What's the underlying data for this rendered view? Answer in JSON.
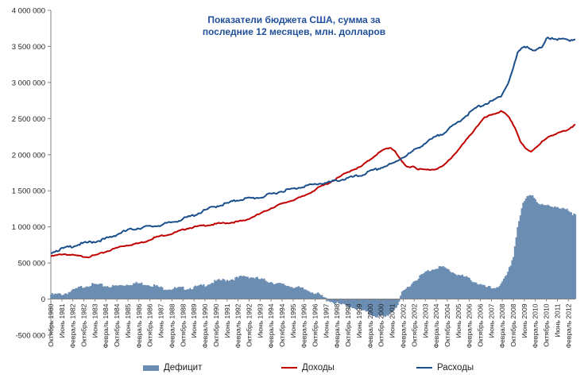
{
  "chart_data": {
    "type": "bar+line",
    "title_line1": "Показатели бюджета США, сумма за",
    "title_line2": "последние 12 месяцев, млн. долларов",
    "ylim": [
      -500000,
      4000000
    ],
    "y_ticks": [
      {
        "v": 4000000,
        "label": "4 000 000"
      },
      {
        "v": 3500000,
        "label": "3 500 000"
      },
      {
        "v": 3000000,
        "label": "3 000 000"
      },
      {
        "v": 2500000,
        "label": "2 500 000"
      },
      {
        "v": 2000000,
        "label": "2 000 000"
      },
      {
        "v": 1500000,
        "label": "1 500 000"
      },
      {
        "v": 1000000,
        "label": "1 000 000"
      },
      {
        "v": 500000,
        "label": "500 000"
      },
      {
        "v": 0,
        "label": "0"
      },
      {
        "v": -500000,
        "label": "-500 000"
      }
    ],
    "x_start": 1980.75,
    "x_end": 2012.5,
    "x_tick_labels": [
      {
        "t": 1980.75,
        "label": "Октябрь 1980"
      },
      {
        "t": 1981.42,
        "label": "Июнь 1981"
      },
      {
        "t": 1982.08,
        "label": "Февраль 1982"
      },
      {
        "t": 1982.75,
        "label": "Октябрь 1982"
      },
      {
        "t": 1983.42,
        "label": "Июнь 1983"
      },
      {
        "t": 1984.08,
        "label": "Февраль 1984"
      },
      {
        "t": 1984.75,
        "label": "Октябрь 1984"
      },
      {
        "t": 1985.42,
        "label": "Июнь 1985"
      },
      {
        "t": 1986.08,
        "label": "Февраль 1986"
      },
      {
        "t": 1986.75,
        "label": "Октябрь 1986"
      },
      {
        "t": 1987.42,
        "label": "Июнь 1987"
      },
      {
        "t": 1988.08,
        "label": "Февраль 1988"
      },
      {
        "t": 1988.75,
        "label": "Октябрь 1988"
      },
      {
        "t": 1989.42,
        "label": "Июнь 1989"
      },
      {
        "t": 1990.08,
        "label": "Февраль 1990"
      },
      {
        "t": 1990.75,
        "label": "Октябрь 1990"
      },
      {
        "t": 1991.42,
        "label": "Июнь 1991"
      },
      {
        "t": 1992.08,
        "label": "Февраль 1992"
      },
      {
        "t": 1992.75,
        "label": "Октябрь 1992"
      },
      {
        "t": 1993.42,
        "label": "Июнь 1993"
      },
      {
        "t": 1994.08,
        "label": "Февраль 1994"
      },
      {
        "t": 1994.75,
        "label": "Октябрь 1994"
      },
      {
        "t": 1995.42,
        "label": "Июнь 1995"
      },
      {
        "t": 1996.08,
        "label": "Февраль 1996"
      },
      {
        "t": 1996.75,
        "label": "Октябрь 1996"
      },
      {
        "t": 1997.42,
        "label": "Июнь 1997"
      },
      {
        "t": 1998.08,
        "label": "Февраль 1998"
      },
      {
        "t": 1998.75,
        "label": "Октябрь 1998"
      },
      {
        "t": 1999.42,
        "label": "Июнь 1999"
      },
      {
        "t": 2000.08,
        "label": "Февраль 2000"
      },
      {
        "t": 2000.75,
        "label": "Октябрь 2000"
      },
      {
        "t": 2001.42,
        "label": "Июнь 2001"
      },
      {
        "t": 2002.08,
        "label": "Февраль 2002"
      },
      {
        "t": 2002.75,
        "label": "Октябрь 2002"
      },
      {
        "t": 2003.42,
        "label": "Июнь 2003"
      },
      {
        "t": 2004.08,
        "label": "Февраль 2004"
      },
      {
        "t": 2004.75,
        "label": "Октябрь 2004"
      },
      {
        "t": 2005.42,
        "label": "Июнь 2005"
      },
      {
        "t": 2006.08,
        "label": "Февраль 2006"
      },
      {
        "t": 2006.75,
        "label": "Октябрь 2006"
      },
      {
        "t": 2007.42,
        "label": "Июнь 2007"
      },
      {
        "t": 2008.08,
        "label": "Февраль 2008"
      },
      {
        "t": 2008.75,
        "label": "Октябрь 2008"
      },
      {
        "t": 2009.42,
        "label": "Июнь 2009"
      },
      {
        "t": 2010.08,
        "label": "Февраль 2010"
      },
      {
        "t": 2010.75,
        "label": "Октябрь 2010"
      },
      {
        "t": 2011.42,
        "label": "Июнь 2011"
      },
      {
        "t": 2012.08,
        "label": "Февраль 2012"
      }
    ],
    "series": [
      {
        "name": "Дефицит",
        "kind": "bar",
        "color": "#6b8db2",
        "points": [
          [
            1980.75,
            60000
          ],
          [
            1981.5,
            70000
          ],
          [
            1982.0,
            110000
          ],
          [
            1982.5,
            160000
          ],
          [
            1983.0,
            195000
          ],
          [
            1983.5,
            200000
          ],
          [
            1984.0,
            185000
          ],
          [
            1984.5,
            175000
          ],
          [
            1985.0,
            190000
          ],
          [
            1985.5,
            210000
          ],
          [
            1986.0,
            220000
          ],
          [
            1986.5,
            210000
          ],
          [
            1987.0,
            190000
          ],
          [
            1987.5,
            150000
          ],
          [
            1988.0,
            145000
          ],
          [
            1988.5,
            150000
          ],
          [
            1989.0,
            150000
          ],
          [
            1989.5,
            165000
          ],
          [
            1990.0,
            190000
          ],
          [
            1990.5,
            230000
          ],
          [
            1991.0,
            260000
          ],
          [
            1991.5,
            270000
          ],
          [
            1992.0,
            290000
          ],
          [
            1992.5,
            320000
          ],
          [
            1993.0,
            300000
          ],
          [
            1993.5,
            270000
          ],
          [
            1994.0,
            245000
          ],
          [
            1994.5,
            210000
          ],
          [
            1995.0,
            190000
          ],
          [
            1995.5,
            170000
          ],
          [
            1996.0,
            140000
          ],
          [
            1996.5,
            110000
          ],
          [
            1997.0,
            60000
          ],
          [
            1997.5,
            -10000
          ],
          [
            1998.0,
            -60000
          ],
          [
            1998.5,
            -90000
          ],
          [
            1999.0,
            -110000
          ],
          [
            1999.5,
            -150000
          ],
          [
            2000.0,
            -200000
          ],
          [
            2000.5,
            -240000
          ],
          [
            2001.0,
            -250000
          ],
          [
            2001.5,
            -150000
          ],
          [
            2001.8,
            -60000
          ],
          [
            2002.0,
            80000
          ],
          [
            2002.5,
            200000
          ],
          [
            2003.0,
            300000
          ],
          [
            2003.5,
            380000
          ],
          [
            2004.0,
            430000
          ],
          [
            2004.3,
            450000
          ],
          [
            2004.7,
            420000
          ],
          [
            2005.0,
            380000
          ],
          [
            2005.5,
            330000
          ],
          [
            2006.0,
            290000
          ],
          [
            2006.5,
            230000
          ],
          [
            2007.0,
            170000
          ],
          [
            2007.5,
            150000
          ],
          [
            2008.0,
            200000
          ],
          [
            2008.4,
            350000
          ],
          [
            2008.75,
            600000
          ],
          [
            2009.0,
            1000000
          ],
          [
            2009.3,
            1300000
          ],
          [
            2009.6,
            1420000
          ],
          [
            2009.9,
            1450000
          ],
          [
            2010.2,
            1350000
          ],
          [
            2010.5,
            1300000
          ],
          [
            2011.0,
            1280000
          ],
          [
            2011.3,
            1300000
          ],
          [
            2011.6,
            1250000
          ],
          [
            2012.0,
            1230000
          ],
          [
            2012.3,
            1170000
          ],
          [
            2012.5,
            1200000
          ]
        ]
      },
      {
        "name": "Доходы",
        "kind": "line",
        "color": "#c00000",
        "points": [
          [
            1980.75,
            590000
          ],
          [
            1981.5,
            625000
          ],
          [
            1982.0,
            610000
          ],
          [
            1982.5,
            595000
          ],
          [
            1983.0,
            585000
          ],
          [
            1983.5,
            610000
          ],
          [
            1984.0,
            650000
          ],
          [
            1984.5,
            690000
          ],
          [
            1985.0,
            730000
          ],
          [
            1985.5,
            750000
          ],
          [
            1986.0,
            770000
          ],
          [
            1986.5,
            800000
          ],
          [
            1987.0,
            850000
          ],
          [
            1987.5,
            880000
          ],
          [
            1988.0,
            900000
          ],
          [
            1988.5,
            940000
          ],
          [
            1989.0,
            980000
          ],
          [
            1989.5,
            1000000
          ],
          [
            1990.0,
            1020000
          ],
          [
            1990.5,
            1030000
          ],
          [
            1991.0,
            1050000
          ],
          [
            1991.5,
            1055000
          ],
          [
            1992.0,
            1070000
          ],
          [
            1992.5,
            1090000
          ],
          [
            1993.0,
            1140000
          ],
          [
            1993.5,
            1190000
          ],
          [
            1994.0,
            1250000
          ],
          [
            1994.5,
            1300000
          ],
          [
            1995.0,
            1340000
          ],
          [
            1995.5,
            1380000
          ],
          [
            1996.0,
            1420000
          ],
          [
            1996.5,
            1480000
          ],
          [
            1997.0,
            1550000
          ],
          [
            1997.5,
            1600000
          ],
          [
            1998.0,
            1660000
          ],
          [
            1998.5,
            1730000
          ],
          [
            1999.0,
            1790000
          ],
          [
            1999.5,
            1830000
          ],
          [
            2000.0,
            1920000
          ],
          [
            2000.5,
            2010000
          ],
          [
            2001.0,
            2080000
          ],
          [
            2001.3,
            2100000
          ],
          [
            2001.6,
            2050000
          ],
          [
            2002.0,
            1900000
          ],
          [
            2002.3,
            1830000
          ],
          [
            2002.7,
            1840000
          ],
          [
            2003.0,
            1800000
          ],
          [
            2003.5,
            1790000
          ],
          [
            2004.0,
            1800000
          ],
          [
            2004.5,
            1840000
          ],
          [
            2005.0,
            1960000
          ],
          [
            2005.5,
            2090000
          ],
          [
            2006.0,
            2230000
          ],
          [
            2006.5,
            2380000
          ],
          [
            2007.0,
            2510000
          ],
          [
            2007.5,
            2560000
          ],
          [
            2008.0,
            2600000
          ],
          [
            2008.3,
            2560000
          ],
          [
            2008.6,
            2480000
          ],
          [
            2008.9,
            2350000
          ],
          [
            2009.2,
            2170000
          ],
          [
            2009.5,
            2080000
          ],
          [
            2009.8,
            2040000
          ],
          [
            2010.0,
            2080000
          ],
          [
            2010.5,
            2180000
          ],
          [
            2011.0,
            2260000
          ],
          [
            2011.5,
            2310000
          ],
          [
            2012.0,
            2330000
          ],
          [
            2012.3,
            2380000
          ],
          [
            2012.5,
            2430000
          ]
        ]
      },
      {
        "name": "Расходы",
        "kind": "line",
        "color": "#1a4f8b",
        "points": [
          [
            1980.75,
            650000
          ],
          [
            1981.5,
            700000
          ],
          [
            1982.0,
            730000
          ],
          [
            1982.5,
            760000
          ],
          [
            1983.0,
            785000
          ],
          [
            1983.5,
            800000
          ],
          [
            1984.0,
            830000
          ],
          [
            1984.5,
            870000
          ],
          [
            1985.0,
            920000
          ],
          [
            1985.5,
            960000
          ],
          [
            1986.0,
            980000
          ],
          [
            1986.5,
            1000000
          ],
          [
            1987.0,
            1010000
          ],
          [
            1987.5,
            1030000
          ],
          [
            1988.0,
            1060000
          ],
          [
            1988.5,
            1090000
          ],
          [
            1989.0,
            1130000
          ],
          [
            1989.5,
            1170000
          ],
          [
            1990.0,
            1220000
          ],
          [
            1990.5,
            1270000
          ],
          [
            1991.0,
            1300000
          ],
          [
            1991.5,
            1330000
          ],
          [
            1992.0,
            1370000
          ],
          [
            1992.5,
            1390000
          ],
          [
            1993.0,
            1400000
          ],
          [
            1993.5,
            1410000
          ],
          [
            1994.0,
            1450000
          ],
          [
            1994.5,
            1480000
          ],
          [
            1995.0,
            1510000
          ],
          [
            1995.5,
            1530000
          ],
          [
            1996.0,
            1560000
          ],
          [
            1996.5,
            1580000
          ],
          [
            1997.0,
            1600000
          ],
          [
            1997.5,
            1610000
          ],
          [
            1998.0,
            1640000
          ],
          [
            1998.5,
            1660000
          ],
          [
            1999.0,
            1690000
          ],
          [
            1999.5,
            1710000
          ],
          [
            2000.0,
            1760000
          ],
          [
            2000.5,
            1800000
          ],
          [
            2001.0,
            1840000
          ],
          [
            2001.5,
            1880000
          ],
          [
            2002.0,
            1960000
          ],
          [
            2002.5,
            2020000
          ],
          [
            2003.0,
            2100000
          ],
          [
            2003.5,
            2170000
          ],
          [
            2004.0,
            2240000
          ],
          [
            2004.5,
            2300000
          ],
          [
            2005.0,
            2380000
          ],
          [
            2005.5,
            2470000
          ],
          [
            2006.0,
            2560000
          ],
          [
            2006.5,
            2650000
          ],
          [
            2007.0,
            2700000
          ],
          [
            2007.5,
            2740000
          ],
          [
            2008.0,
            2820000
          ],
          [
            2008.4,
            2970000
          ],
          [
            2008.75,
            3200000
          ],
          [
            2009.0,
            3400000
          ],
          [
            2009.3,
            3500000
          ],
          [
            2009.6,
            3500000
          ],
          [
            2009.9,
            3430000
          ],
          [
            2010.2,
            3450000
          ],
          [
            2010.5,
            3500000
          ],
          [
            2010.8,
            3640000
          ],
          [
            2011.1,
            3600000
          ],
          [
            2011.4,
            3580000
          ],
          [
            2011.7,
            3620000
          ],
          [
            2012.0,
            3600000
          ],
          [
            2012.3,
            3570000
          ],
          [
            2012.5,
            3590000
          ]
        ]
      }
    ]
  },
  "legend": {
    "deficit": "Дефицит",
    "revenue": "Доходы",
    "spending": "Расходы"
  },
  "colors": {
    "deficit": "#6b8db2",
    "revenue": "#c00000",
    "spending": "#1a4f8b",
    "title": "#1f4e9a"
  }
}
